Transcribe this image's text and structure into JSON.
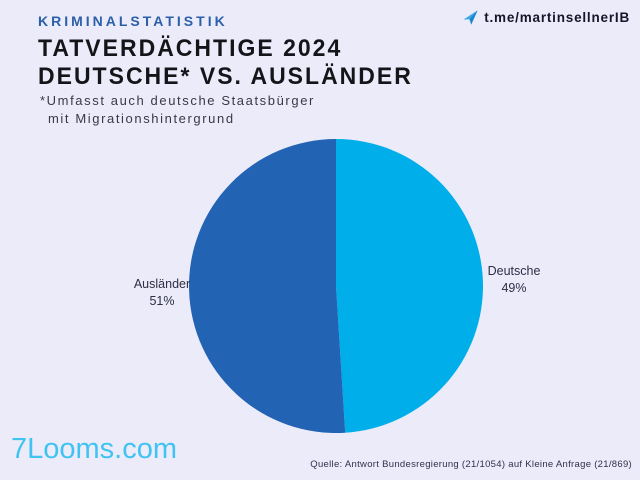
{
  "header": {
    "kicker": "KRIMINALSTATISTIK",
    "title_line1": "TATVERDÄCHTIGE 2024",
    "title_line2": "DEUTSCHE* VS. AUSLÄNDER",
    "footnote_line1": "*Umfasst auch deutsche Staatsbürger",
    "footnote_line2": "mit Migrationshintergrund",
    "telegram_handle": "t.me/martinsellnerIB"
  },
  "chart_data": {
    "type": "pie",
    "title": "Tatverdächtige 2024 — Deutsche* vs. Ausländer",
    "start_angle_deg": 0,
    "direction": "clockwise",
    "legend_position": "side-labels",
    "slices": [
      {
        "key": "deutsche",
        "label": "Deutsche",
        "value": 49,
        "percent_label": "49%",
        "color": "#00aeea"
      },
      {
        "key": "auslaender",
        "label": "Ausländer",
        "value": 51,
        "percent_label": "51%",
        "color": "#2363b4"
      }
    ]
  },
  "footer": {
    "source": "Quelle: Antwort Bundesregierung (21/1054) auf Kleine Anfrage (21/869)",
    "watermark": "7Looms.com"
  },
  "colors": {
    "background": "#ebebfa",
    "kicker_blue": "#2b5fa8",
    "slice_dark_blue": "#2363b4",
    "slice_light_blue": "#00aeea",
    "watermark_cyan": "#41c3f2",
    "telegram_icon_blue": "#38a8e8"
  }
}
